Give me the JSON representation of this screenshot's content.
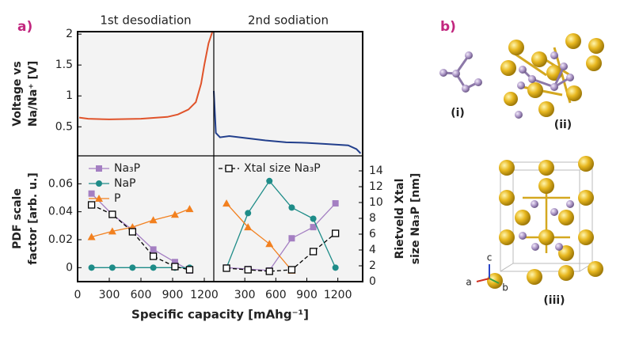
{
  "panel_labels": [
    "a)",
    "b)"
  ],
  "structures": [
    "(i)",
    "(ii)",
    "(iii)"
  ],
  "lattice_axes": [
    "a",
    "b",
    "c"
  ],
  "chart_data": [
    {
      "type": "line",
      "title": "1st desodiation",
      "ylabel": [
        "Voltage vs",
        "Na/Na⁺ [V]"
      ],
      "xlim": [
        0,
        1290
      ],
      "ylim": [
        0.03,
        2.04
      ],
      "yticks": [
        0.5,
        1,
        1.5,
        2
      ],
      "series": [
        {
          "color": "#e0532a",
          "x": [
            15,
            100,
            300,
            600,
            850,
            950,
            1050,
            1120,
            1170,
            1200,
            1240,
            1275
          ],
          "values": [
            0.65,
            0.63,
            0.62,
            0.63,
            0.66,
            0.7,
            0.78,
            0.9,
            1.2,
            1.5,
            1.85,
            2.03
          ]
        }
      ]
    },
    {
      "type": "line",
      "title": "2nd sodiation",
      "xlim": [
        0,
        1440
      ],
      "ylim": [
        0.03,
        2.04
      ],
      "series": [
        {
          "color": "#223f8c",
          "x": [
            0,
            20,
            60,
            150,
            300,
            500,
            700,
            900,
            1100,
            1300,
            1380,
            1420
          ],
          "values": [
            1.08,
            0.4,
            0.33,
            0.35,
            0.32,
            0.28,
            0.25,
            0.24,
            0.22,
            0.2,
            0.14,
            0.07
          ]
        }
      ]
    },
    {
      "type": "line",
      "ylabel": [
        "PDF scale",
        "factor [arb. u.]"
      ],
      "xlabel": "Specific capacity [mAhg⁻¹]",
      "xlim": [
        0,
        1290
      ],
      "xticks": [
        0,
        300,
        600,
        900,
        1200
      ],
      "ylim": [
        -0.01,
        0.08
      ],
      "yticks": [
        0,
        0.02,
        0.04,
        0.06
      ],
      "y2lim": [
        0,
        15.9
      ],
      "series": [
        {
          "name": "Na₃P",
          "color": "#a47fc2",
          "marker": "square",
          "x": [
            132,
            329,
            520,
            717,
            922,
            1061
          ],
          "values": [
            0.053,
            0.038,
            0.027,
            0.013,
            0.004,
            -0.002
          ]
        },
        {
          "name": "NaP",
          "color": "#1e8c88",
          "marker": "circle",
          "x": [
            132,
            329,
            520,
            717,
            922,
            1061
          ],
          "values": [
            0,
            0,
            0,
            0,
            0,
            0
          ]
        },
        {
          "name": "P",
          "color": "#f2801f",
          "marker": "triangle",
          "x": [
            132,
            329,
            520,
            717,
            922,
            1061
          ],
          "values": [
            0.022,
            0.026,
            0.029,
            0.034,
            0.038,
            0.042
          ]
        },
        {
          "name": "Xtal size Na₃P",
          "color": "#000000",
          "marker": "open-square",
          "dashed": true,
          "axis": "y2",
          "x": [
            132,
            329,
            520,
            717,
            922,
            1061
          ],
          "values": [
            9.7,
            8.5,
            6.3,
            3.2,
            1.9,
            1.5
          ]
        }
      ]
    },
    {
      "type": "line",
      "y2label": [
        "Rietveld Xtal",
        "size Na₃P [nm]"
      ],
      "xlim": [
        0,
        1440
      ],
      "xticks": [
        300,
        600,
        900,
        1200
      ],
      "ylim": [
        -0.01,
        0.08
      ],
      "y2lim": [
        0,
        15.9
      ],
      "y2ticks": [
        0,
        2,
        4,
        6,
        8,
        10,
        12,
        14
      ],
      "series": [
        {
          "color": "#a47fc2",
          "marker": "square",
          "x": [
            123,
            331,
            538,
            754,
            962,
            1177
          ],
          "values": [
            0,
            -0.001,
            -0.002,
            0.021,
            0.029,
            0.046
          ]
        },
        {
          "color": "#1e8c88",
          "marker": "circle",
          "x": [
            123,
            331,
            538,
            754,
            962,
            1177
          ],
          "values": [
            0,
            0.039,
            0.062,
            0.043,
            0.035,
            0
          ]
        },
        {
          "color": "#f2801f",
          "marker": "triangle",
          "x": [
            123,
            331,
            538,
            754
          ],
          "values": [
            0.046,
            0.029,
            0.017,
            -0.002
          ]
        },
        {
          "color": "#000000",
          "marker": "open-square",
          "dashed": true,
          "axis": "y2",
          "x": [
            123,
            331,
            538,
            754,
            962,
            1177
          ],
          "values": [
            1.7,
            1.5,
            1.3,
            1.5,
            3.8,
            6.1
          ]
        }
      ]
    }
  ]
}
